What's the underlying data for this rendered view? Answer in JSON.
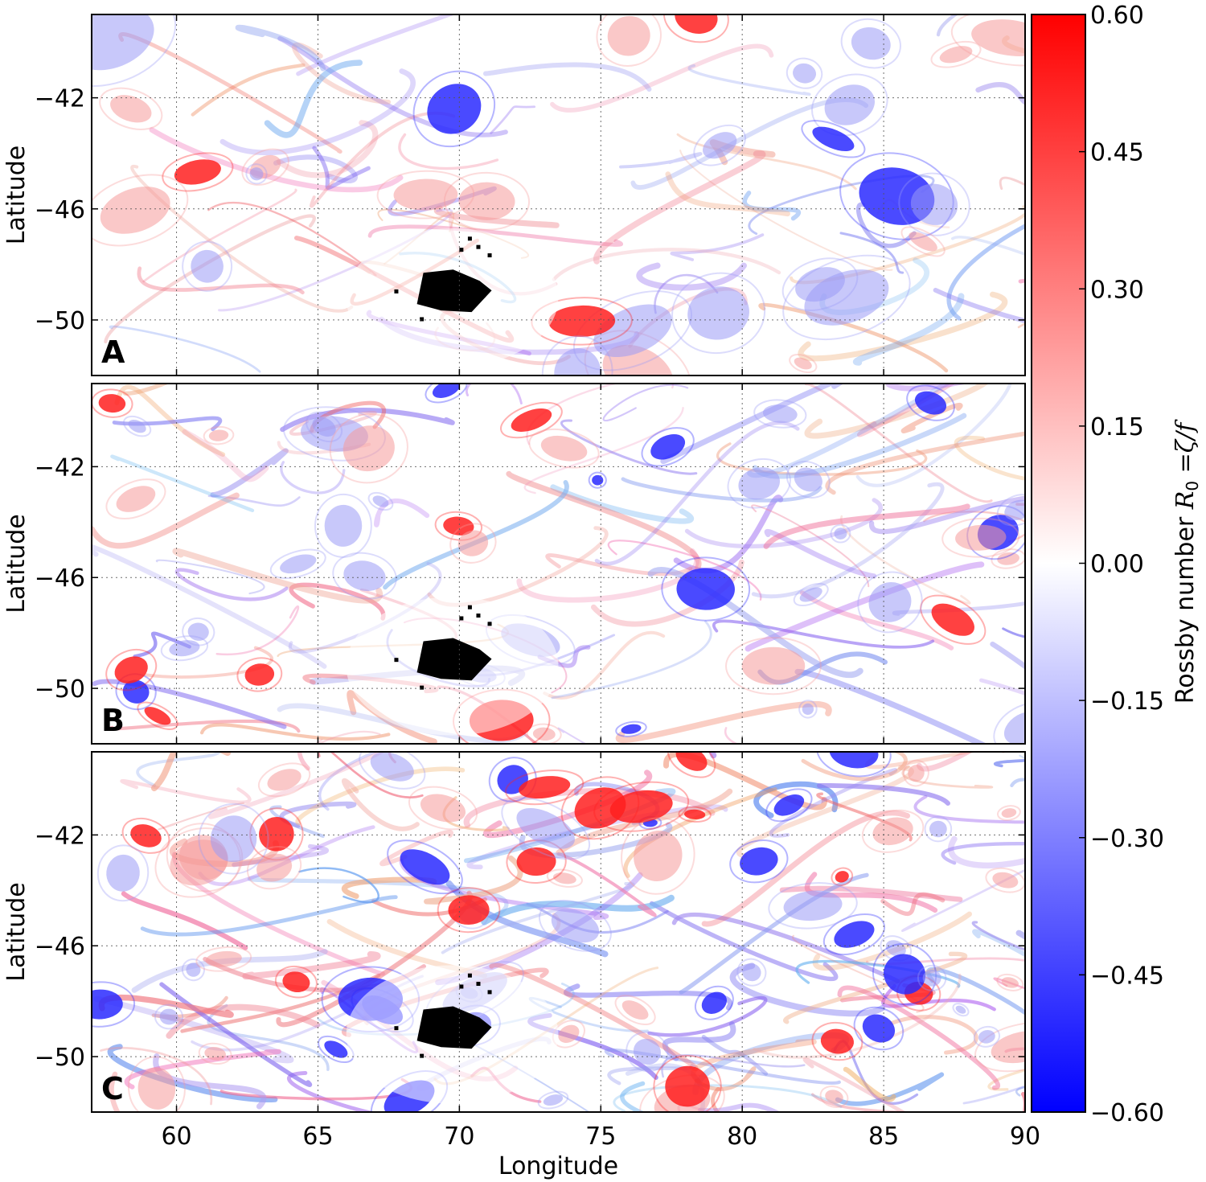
{
  "chart_data": {
    "type": "heatmap",
    "colormap": "bwr",
    "panels": [
      {
        "label": "A",
        "ylabel": "Latitude"
      },
      {
        "label": "B",
        "ylabel": "Latitude"
      },
      {
        "label": "C",
        "ylabel": "Latitude"
      }
    ],
    "xlabel": "Longitude",
    "x_ticks": [
      "60",
      "65",
      "70",
      "75",
      "80",
      "85",
      "90"
    ],
    "x_tick_values": [
      60,
      65,
      70,
      75,
      80,
      85,
      90
    ],
    "xlim": [
      57,
      90
    ],
    "y_ticks": [
      "−42",
      "−46",
      "−50"
    ],
    "y_tick_values": [
      -42,
      -46,
      -50
    ],
    "ylim": [
      -52,
      -39
    ],
    "grid": true,
    "masked_region": {
      "lon_range": [
        68.5,
        71.0
      ],
      "lat_range": [
        -50.5,
        -47.0
      ],
      "color": "#000000"
    },
    "colorbar": {
      "label": "Rossby number R₀ =ζ/f",
      "label_main": "Rossby number",
      "label_math": "R",
      "label_sub": "0",
      "label_eq": "=ζ/f",
      "min": -0.6,
      "max": 0.6,
      "ticks": [
        "0.60",
        "0.45",
        "0.30",
        "0.15",
        "0.00",
        "−0.15",
        "−0.30",
        "−0.45",
        "−0.60"
      ],
      "tick_values": [
        0.6,
        0.45,
        0.3,
        0.15,
        0.0,
        -0.15,
        -0.3,
        -0.45,
        -0.6
      ],
      "color_min": "#0000ff",
      "color_mid": "#ffffff",
      "color_max": "#ff0000"
    }
  }
}
